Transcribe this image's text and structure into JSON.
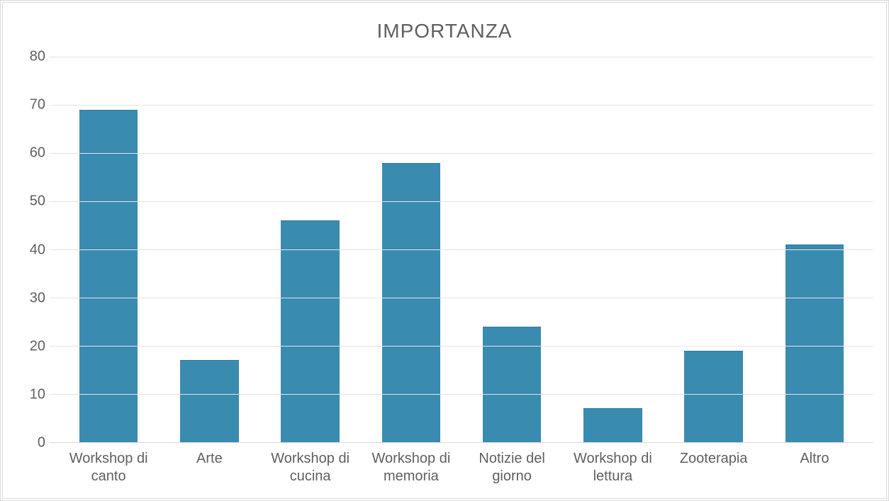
{
  "chart": {
    "type": "bar",
    "title": "IMPORTANZA",
    "title_color": "#5f5f5f",
    "title_fontsize": 28,
    "background_color": "#ffffff",
    "border_color": "#d9d9d9",
    "grid_color": "#e4e4e4",
    "axis_label_color": "#5f5f5f",
    "axis_fontsize": 20,
    "bar_color": "#3a8bb0",
    "bar_width": 0.58,
    "ylim": [
      0,
      80
    ],
    "ytick_step": 10,
    "yticks": [
      0,
      10,
      20,
      30,
      40,
      50,
      60,
      70,
      80
    ],
    "categories": [
      "Workshop di canto",
      "Arte",
      "Workshop di cucina",
      "Workshop di memoria",
      "Notizie del giorno",
      "Workshop di lettura",
      "Zooterapia",
      "Altro"
    ],
    "values": [
      69,
      17,
      46,
      58,
      24,
      7,
      19,
      41
    ]
  }
}
